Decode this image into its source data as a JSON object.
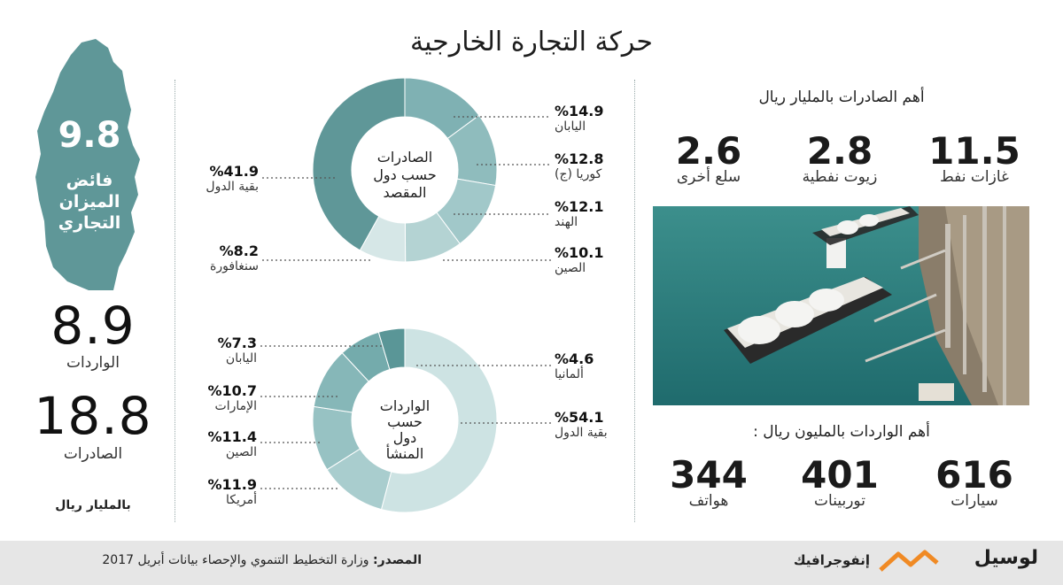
{
  "title": "حركة التجارة الخارجية",
  "balance": {
    "value": "9.8",
    "label_line1": "فائض",
    "label_line2": "الميزان",
    "label_line3": "التجاري"
  },
  "imports_total": {
    "value": "8.9",
    "label": "الواردات"
  },
  "exports_total": {
    "value": "18.8",
    "label": "الصادرات"
  },
  "unit_note": "بالمليار ريال",
  "top_exports": {
    "heading": "أهم الصادرات بالمليار ريال",
    "items": [
      {
        "value": "11.5",
        "label": "غازات نفط"
      },
      {
        "value": "2.8",
        "label": "زيوت نفطية"
      },
      {
        "value": "2.6",
        "label": "سلع أخرى"
      }
    ]
  },
  "top_imports": {
    "heading": "أهم الواردات بالمليون ريال :",
    "items": [
      {
        "value": "616",
        "label": "سيارات"
      },
      {
        "value": "401",
        "label": "توربينات"
      },
      {
        "value": "344",
        "label": "هواتف"
      }
    ]
  },
  "chart_data": [
    {
      "type": "pie",
      "title": "الصادرات حسب دول المقصد",
      "center_lines": [
        "الصادرات",
        "حسب دول",
        "المقصد"
      ],
      "categories": [
        "اليابان",
        "كوريا (ج)",
        "الهند",
        "الصين",
        "سنغافورة",
        "بقية الدول"
      ],
      "values": [
        14.9,
        12.8,
        12.1,
        10.1,
        8.2,
        41.9
      ],
      "labels": [
        "%14.9",
        "%12.8",
        "%12.1",
        "%10.1",
        "%8.2",
        "%41.9"
      ],
      "colors": [
        "#7fb1b3",
        "#8fbcbd",
        "#a1c8c9",
        "#b4d3d3",
        "#d6e7e7",
        "#5f9798"
      ]
    },
    {
      "type": "pie",
      "title": "الواردات حسب دول المنشأ",
      "center_lines": [
        "الواردات",
        "حسب",
        "دول",
        "المنشأ"
      ],
      "categories": [
        "بقية الدول",
        "أمريكا",
        "الصين",
        "الإمارات",
        "اليابان",
        "ألمانيا"
      ],
      "values": [
        54.1,
        11.9,
        11.4,
        10.7,
        7.3,
        4.6
      ],
      "labels": [
        "%54.1",
        "%11.9",
        "%11.4",
        "%10.7",
        "%7.3",
        "%4.6"
      ],
      "colors": [
        "#cde3e3",
        "#a9cdce",
        "#97c2c3",
        "#86b7b8",
        "#74abac",
        "#5a9697"
      ]
    }
  ],
  "footer": {
    "source_label": "المصدر:",
    "source_text": "وزارة التخطيط التنموي والإحصاء بيانات أبريل 2017",
    "brand": "لوسيل",
    "section": "إنفوجرافيك"
  },
  "colors": {
    "teal": "#5f9798",
    "footer_bg": "#e6e6e6",
    "brand_orange": "#f08a24"
  }
}
